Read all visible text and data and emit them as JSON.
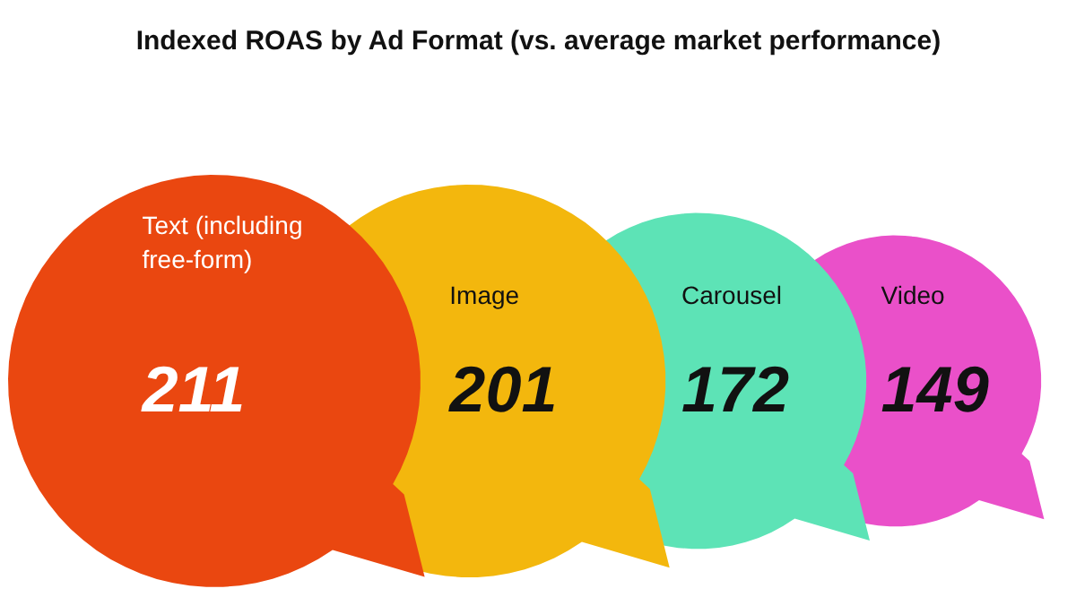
{
  "chart_data": {
    "type": "other",
    "title": "Indexed ROAS by Ad Format (vs. average market performance)",
    "categories": [
      "Text (including free-form)",
      "Image",
      "Carousel",
      "Video"
    ],
    "values": [
      211,
      201,
      172,
      149
    ],
    "colors": [
      "#ea4710",
      "#f3b70d",
      "#5de3b6",
      "#ea50c9"
    ],
    "data_labels": true
  }
}
